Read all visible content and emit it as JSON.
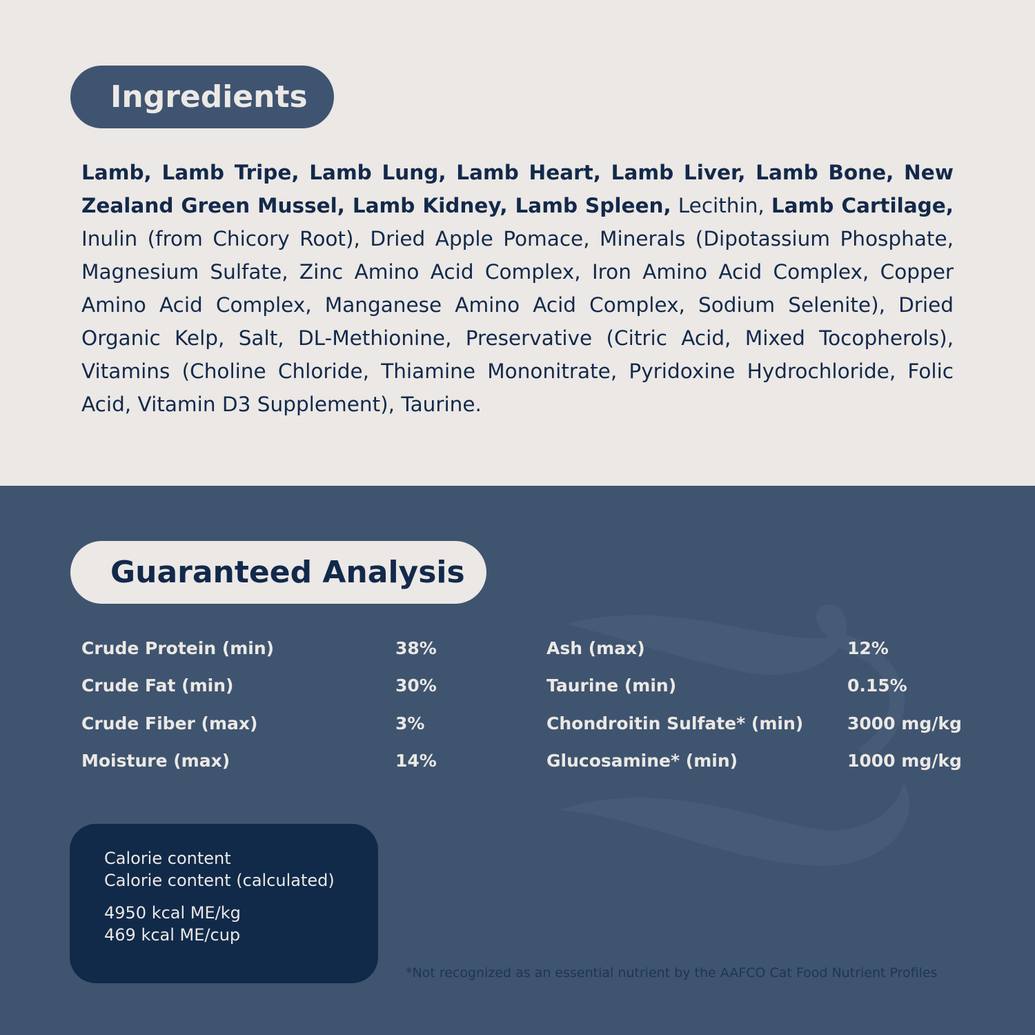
{
  "ingredients": {
    "title": "Ingredients",
    "segments": [
      {
        "text": "Lamb, Lamb Tripe, Lamb Lung, Lamb Heart, Lamb Liver, Lamb Bone, New Zealand Green Mussel, Lamb Kidney, Lamb Spleen,",
        "bold": true
      },
      {
        "text": " Lecithin, ",
        "bold": false
      },
      {
        "text": "Lamb Cartilage,",
        "bold": true
      },
      {
        "text": " Inulin (from Chicory Root), Dried Apple Pomace, Minerals (Dipotassium Phosphate, Magnesium Sulfate, Zinc Amino Acid Complex, Iron Amino Acid Complex, Copper Amino Acid Complex, Manganese Amino Acid Complex, Sodium Selenite), Dried Organic Kelp, Salt, DL-Methionine, Preservative (Citric Acid, Mixed Tocopherols), Vitamins (Choline Chloride, Thiamine Mononitrate, Pyridoxine Hydrochloride, Folic Acid, Vitamin D3 Supplement), Taurine.",
        "bold": false
      }
    ]
  },
  "analysis": {
    "title": "Guaranteed Analysis",
    "left": [
      {
        "label": "Crude Protein (min)",
        "value": "38%"
      },
      {
        "label": "Crude Fat (min)",
        "value": "30%"
      },
      {
        "label": "Crude Fiber (max)",
        "value": "3%"
      },
      {
        "label": "Moisture (max)",
        "value": "14%"
      }
    ],
    "right": [
      {
        "label": "Ash (max)",
        "value": "12%"
      },
      {
        "label": "Taurine (min)",
        "value": "0.15%"
      },
      {
        "label": "Chondroitin Sulfate* (min)",
        "value": "3000 mg/kg"
      },
      {
        "label": "Glucosamine* (min)",
        "value": "1000 mg/kg"
      }
    ]
  },
  "calorie": {
    "line1": "Calorie content",
    "line2": "Calorie content (calculated)",
    "value1": "4950 kcal ME/kg",
    "value2": "469 kcal ME/cup"
  },
  "footnote": "*Not recognized as an essential nutrient by the AAFCO Cat Food Nutrient Profiles",
  "colors": {
    "light_bg": "#ebe8e5",
    "section_bg": "#3f546f",
    "text_dark": "#13294b",
    "calorie_box": "#112a4a"
  }
}
